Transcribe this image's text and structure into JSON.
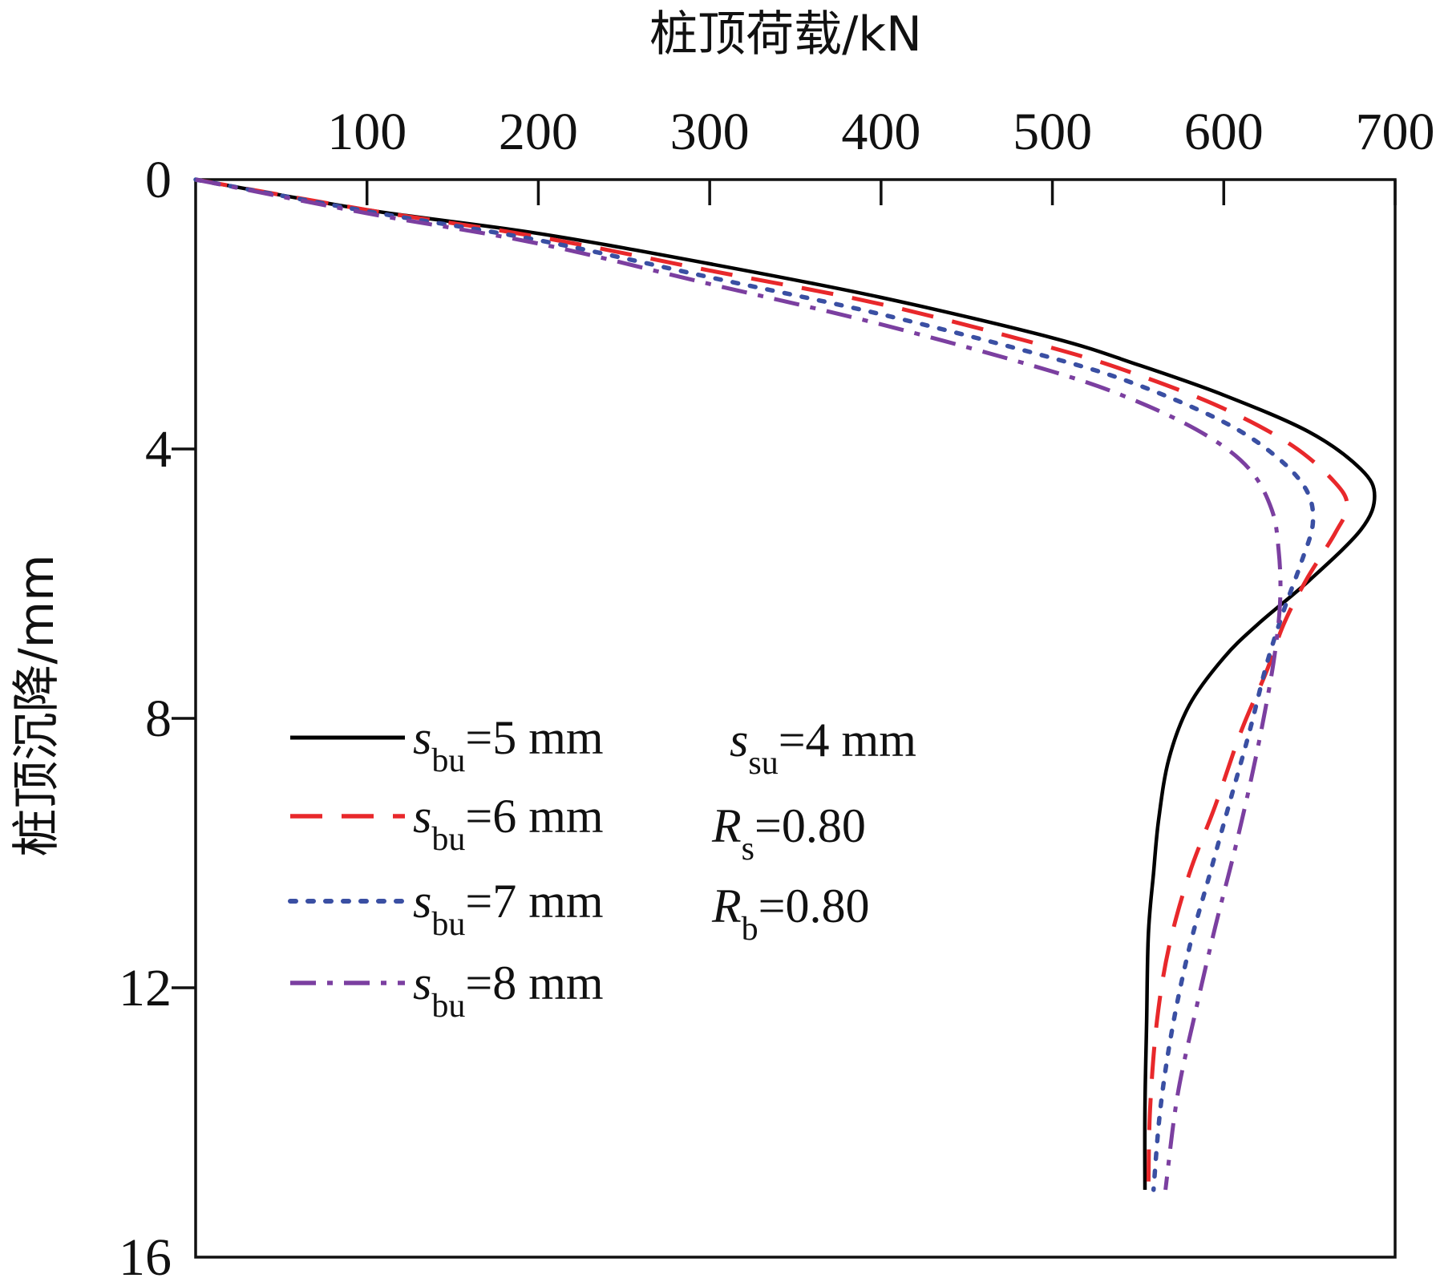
{
  "chart_data": {
    "type": "line",
    "xlabel": "桩顶荷载/kN",
    "ylabel": "桩顶沉降/mm",
    "xlim": [
      0,
      700
    ],
    "ylim": [
      0,
      16
    ],
    "y_inverted": true,
    "x_axis_position": "top",
    "x_ticks": [
      100,
      200,
      300,
      400,
      500,
      600,
      700
    ],
    "y_ticks": [
      0,
      4,
      8,
      12,
      16
    ],
    "grid": false,
    "legend_position": "lower-left",
    "series": [
      {
        "name": "s_bu=5 mm",
        "legend": {
          "sym": "s",
          "sub": "bu",
          "rest": "=5 mm"
        },
        "color": "#000000",
        "dash": "solid",
        "points": [
          [
            0,
            0
          ],
          [
            100,
            0.45
          ],
          [
            200,
            0.8
          ],
          [
            300,
            1.25
          ],
          [
            400,
            1.75
          ],
          [
            500,
            2.35
          ],
          [
            550,
            2.75
          ],
          [
            600,
            3.2
          ],
          [
            650,
            3.75
          ],
          [
            680,
            4.3
          ],
          [
            688,
            4.7
          ],
          [
            680,
            5.2
          ],
          [
            650,
            5.95
          ],
          [
            620,
            6.6
          ],
          [
            600,
            7.1
          ],
          [
            580,
            7.8
          ],
          [
            568,
            8.6
          ],
          [
            562,
            9.5
          ],
          [
            559,
            10.3
          ],
          [
            556,
            11.2
          ],
          [
            555,
            12.5
          ],
          [
            554,
            13.8
          ],
          [
            554,
            15.0
          ]
        ]
      },
      {
        "name": "s_bu=6 mm",
        "legend": {
          "sym": "s",
          "sub": "bu",
          "rest": "=6 mm"
        },
        "color": "#e8282b",
        "dash": "dashed",
        "points": [
          [
            0,
            0
          ],
          [
            100,
            0.45
          ],
          [
            200,
            0.85
          ],
          [
            300,
            1.35
          ],
          [
            400,
            1.85
          ],
          [
            500,
            2.5
          ],
          [
            550,
            2.9
          ],
          [
            600,
            3.4
          ],
          [
            640,
            3.95
          ],
          [
            665,
            4.5
          ],
          [
            672,
            4.85
          ],
          [
            665,
            5.25
          ],
          [
            648,
            5.95
          ],
          [
            635,
            6.6
          ],
          [
            625,
            7.3
          ],
          [
            610,
            8.2
          ],
          [
            595,
            9.3
          ],
          [
            580,
            10.3
          ],
          [
            568,
            11.4
          ],
          [
            561,
            12.5
          ],
          [
            557,
            13.8
          ],
          [
            556,
            15.0
          ]
        ]
      },
      {
        "name": "s_bu=7 mm",
        "legend": {
          "sym": "s",
          "sub": "bu",
          "rest": "=7 mm"
        },
        "color": "#3a4fa3",
        "dash": "dotted",
        "points": [
          [
            0,
            0
          ],
          [
            100,
            0.47
          ],
          [
            200,
            0.9
          ],
          [
            300,
            1.45
          ],
          [
            400,
            2.0
          ],
          [
            500,
            2.65
          ],
          [
            550,
            3.05
          ],
          [
            600,
            3.6
          ],
          [
            630,
            4.1
          ],
          [
            648,
            4.6
          ],
          [
            652,
            5.1
          ],
          [
            645,
            5.7
          ],
          [
            635,
            6.4
          ],
          [
            625,
            7.2
          ],
          [
            615,
            8.2
          ],
          [
            604,
            9.2
          ],
          [
            592,
            10.3
          ],
          [
            580,
            11.4
          ],
          [
            570,
            12.6
          ],
          [
            563,
            13.8
          ],
          [
            559,
            15.0
          ]
        ]
      },
      {
        "name": "s_bu=8 mm",
        "legend": {
          "sym": "s",
          "sub": "bu",
          "rest": "=8 mm"
        },
        "color": "#7b3fa0",
        "dash": "dashdot",
        "points": [
          [
            0,
            0
          ],
          [
            100,
            0.5
          ],
          [
            200,
            0.95
          ],
          [
            300,
            1.55
          ],
          [
            400,
            2.15
          ],
          [
            500,
            2.85
          ],
          [
            550,
            3.3
          ],
          [
            590,
            3.8
          ],
          [
            615,
            4.3
          ],
          [
            628,
            4.9
          ],
          [
            632,
            5.5
          ],
          [
            633,
            6.2
          ],
          [
            630,
            7.0
          ],
          [
            624,
            7.9
          ],
          [
            616,
            8.9
          ],
          [
            606,
            10.0
          ],
          [
            595,
            11.1
          ],
          [
            584,
            12.3
          ],
          [
            573,
            13.6
          ],
          [
            566,
            15.0
          ]
        ]
      }
    ],
    "annotations": [
      {
        "sym": "s",
        "sub": "su",
        "rest": "=4 mm"
      },
      {
        "sym": "R",
        "sub": "s",
        "rest": "=0.80"
      },
      {
        "sym": "R",
        "sub": "b",
        "rest": "=0.80"
      }
    ]
  }
}
